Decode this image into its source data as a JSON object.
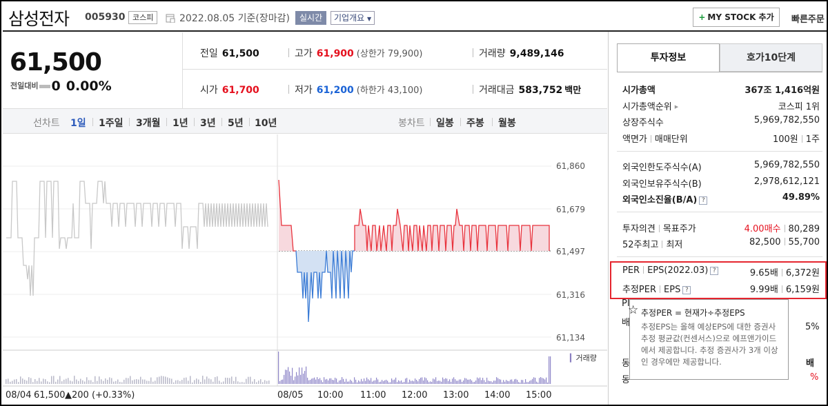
{
  "header": {
    "name": "삼성전자",
    "code": "005930",
    "market_badge": "코스피",
    "date": "2022.08.05 기준(장마감)",
    "realtime": "실시간",
    "overview": "기업개요",
    "mystock_label": "MY STOCK 추가",
    "quick_order": "빠른주문"
  },
  "price": {
    "current": "61,500",
    "prev_diff_label": "전일대비",
    "diff": "0",
    "pct": "0.00%"
  },
  "stats": {
    "prev_close_label": "전일",
    "prev_close": "61,500",
    "high_label": "고가",
    "high": "61,900",
    "upper_limit": "(상한가 79,900)",
    "volume_label": "거래량",
    "volume": "9,489,146",
    "open_label": "시가",
    "open": "61,700",
    "low_label": "저가",
    "low": "61,200",
    "lower_limit": "(하한가 43,100)",
    "value_label": "거래대금",
    "value": "583,752",
    "value_unit": "백만"
  },
  "toolbar": {
    "line_label": "선차트",
    "periods": [
      "1일",
      "1주일",
      "3개월",
      "1년",
      "3년",
      "5년",
      "10년"
    ],
    "candle_label": "봉차트",
    "candles": [
      "일봉",
      "주봉",
      "월봉"
    ]
  },
  "chart_data": {
    "type": "line",
    "y_ticks": [
      "61,860",
      "61,679",
      "61,497",
      "61,316",
      "61,134"
    ],
    "x_ticks": [
      "08/05",
      "10:00",
      "11:00",
      "12:00",
      "13:00",
      "14:00",
      "15:00"
    ],
    "baseline": 61497,
    "ylim": [
      61134,
      61860
    ],
    "prev_day_label": "08/04",
    "prev_day_price": "61,500",
    "prev_day_change": "▲200 (+0.33%)",
    "volume_legend": "거래량"
  },
  "panel": {
    "tab_active": "투자정보",
    "tab_other": "호가10단계",
    "market_cap_label": "시가총액",
    "market_cap": "367조 1,416억원",
    "rank_label": "시가총액순위",
    "rank": "코스피 1위",
    "shares_label": "상장주식수",
    "shares": "5,969,782,550",
    "par_label": "액면가",
    "unit_label": "매매단위",
    "par": "100원",
    "unit": "1주",
    "foreign_limit_label": "외국인한도주식수(A)",
    "foreign_limit": "5,969,782,550",
    "foreign_hold_label": "외국인보유주식수(B)",
    "foreign_hold": "2,978,612,121",
    "foreign_ratio_label": "외국인소진율(B/A)",
    "foreign_ratio": "49.89%",
    "opinion_label": "투자의견",
    "target_label": "목표주가",
    "opinion": "4.00매수",
    "target": "80,289",
    "w52_label": "52주최고",
    "low52_label": "최저",
    "high52": "82,500",
    "low52": "55,700",
    "per_label": "PER",
    "eps_label": "EPS(2022.03)",
    "per": "9.65배",
    "eps": "6,372원",
    "est_per_label": "추정PER",
    "est_eps_label": "EPS",
    "est_per": "9.99배",
    "est_eps": "6,159원",
    "partial_1": "PI",
    "partial_2": "배",
    "partial_3": "5%",
    "partial_4": "동",
    "partial_5": "배",
    "partial_6": "동",
    "partial_7": "%"
  },
  "tooltip": {
    "title": "추정PER = 현재가÷추정EPS",
    "body": "추정EPS는 올해 예상EPS에 대한 증권사 추정 평균값(컨센서스)으로 에프앤가이드에서 제공합니다. 추정 증권사가 3개 이상인 경우에만 제공합니다."
  }
}
